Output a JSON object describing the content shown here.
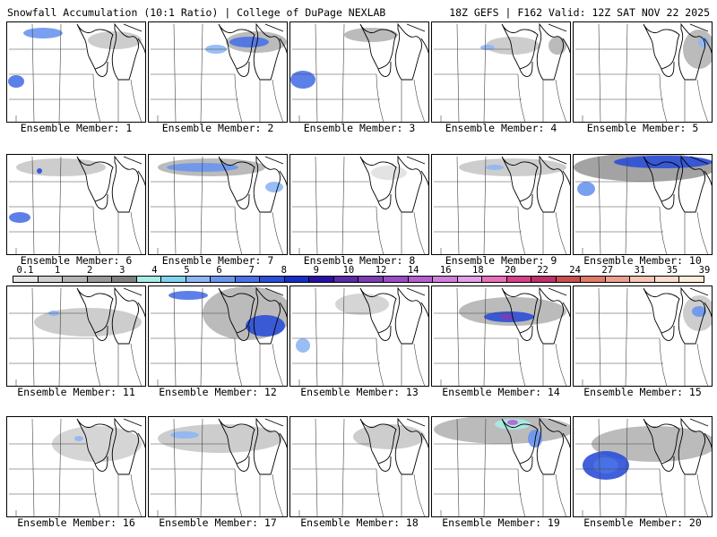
{
  "header": {
    "title_left": "Snowfall Accumulation (10:1 Ratio) | College of DuPage NEXLAB",
    "title_right": "18Z GEFS | F162 Valid: 12Z SAT NOV 22 2025"
  },
  "colorbar": {
    "labels": [
      "0.1",
      "1",
      "2",
      "3",
      "4",
      "5",
      "6",
      "7",
      "8",
      "9",
      "10",
      "12",
      "14",
      "16",
      "18",
      "20",
      "22",
      "24",
      "27",
      "31",
      "35",
      "39"
    ],
    "colors": [
      "#e6e6e6",
      "#cfcfcf",
      "#b4b4b4",
      "#999999",
      "#7f7f7f",
      "#a8ece8",
      "#7fd4ee",
      "#8fb6f4",
      "#6a96ee",
      "#4a72e6",
      "#2b4fd8",
      "#1530c8",
      "#2a10a8",
      "#5a2aa8",
      "#7e3cb4",
      "#9a4ec4",
      "#b460d0",
      "#d080dc",
      "#e0a0e6",
      "#e870b8",
      "#d8408a",
      "#c0306a",
      "#c85050",
      "#e07a6a",
      "#eca090",
      "#f4c4b4",
      "#fadcd0",
      "#fcecd8"
    ]
  },
  "panels": [
    {
      "label": "Ensemble Member: 1",
      "snow": [
        {
          "x": 40,
          "y": 12,
          "rx": 22,
          "ry": 6,
          "c": "#6a96ee"
        },
        {
          "x": 120,
          "y": 20,
          "rx": 30,
          "ry": 10,
          "c": "#c8c8c8"
        },
        {
          "x": 10,
          "y": 66,
          "rx": 9,
          "ry": 7,
          "c": "#4a72e6"
        }
      ]
    },
    {
      "label": "Ensemble Member: 2",
      "snow": [
        {
          "x": 120,
          "y": 22,
          "rx": 34,
          "ry": 12,
          "c": "#b4b4b4"
        },
        {
          "x": 112,
          "y": 22,
          "rx": 22,
          "ry": 6,
          "c": "#4a72e6"
        },
        {
          "x": 75,
          "y": 30,
          "rx": 12,
          "ry": 5,
          "c": "#8fb6f4"
        }
      ]
    },
    {
      "label": "Ensemble Member: 3",
      "snow": [
        {
          "x": 14,
          "y": 64,
          "rx": 14,
          "ry": 10,
          "c": "#4a72e6"
        },
        {
          "x": 90,
          "y": 14,
          "rx": 30,
          "ry": 8,
          "c": "#b4b4b4"
        }
      ]
    },
    {
      "label": "Ensemble Member: 4",
      "snow": [
        {
          "x": 90,
          "y": 26,
          "rx": 30,
          "ry": 10,
          "c": "#c8c8c8"
        },
        {
          "x": 62,
          "y": 28,
          "rx": 8,
          "ry": 3,
          "c": "#8fb6f4"
        },
        {
          "x": 140,
          "y": 26,
          "rx": 10,
          "ry": 10,
          "c": "#b4b4b4"
        }
      ]
    },
    {
      "label": "Ensemble Member: 5",
      "snow": [
        {
          "x": 140,
          "y": 30,
          "rx": 18,
          "ry": 22,
          "c": "#b4b4b4"
        },
        {
          "x": 145,
          "y": 22,
          "rx": 6,
          "ry": 6,
          "c": "#8fb6f4"
        }
      ]
    },
    {
      "label": "Ensemble Member: 6",
      "snow": [
        {
          "x": 60,
          "y": 14,
          "rx": 50,
          "ry": 10,
          "c": "#c8c8c8"
        },
        {
          "x": 14,
          "y": 70,
          "rx": 12,
          "ry": 6,
          "c": "#4a72e6"
        },
        {
          "x": 36,
          "y": 18,
          "rx": 3,
          "ry": 3,
          "c": "#2b4fd8"
        }
      ]
    },
    {
      "label": "Ensemble Member: 7",
      "snow": [
        {
          "x": 70,
          "y": 14,
          "rx": 60,
          "ry": 10,
          "c": "#b4b4b4"
        },
        {
          "x": 60,
          "y": 14,
          "rx": 40,
          "ry": 5,
          "c": "#6a96ee"
        },
        {
          "x": 140,
          "y": 36,
          "rx": 10,
          "ry": 6,
          "c": "#8fb6f4"
        }
      ]
    },
    {
      "label": "Ensemble Member: 8",
      "snow": [
        {
          "x": 110,
          "y": 20,
          "rx": 20,
          "ry": 8,
          "c": "#e0e0e0"
        }
      ]
    },
    {
      "label": "Ensemble Member: 9",
      "snow": [
        {
          "x": 90,
          "y": 14,
          "rx": 60,
          "ry": 10,
          "c": "#c8c8c8"
        },
        {
          "x": 70,
          "y": 14,
          "rx": 10,
          "ry": 3,
          "c": "#8fb6f4"
        }
      ]
    },
    {
      "label": "Ensemble Member: 10",
      "snow": [
        {
          "x": 80,
          "y": 14,
          "rx": 80,
          "ry": 16,
          "c": "#999999"
        },
        {
          "x": 100,
          "y": 8,
          "rx": 55,
          "ry": 7,
          "c": "#2b4fd8"
        },
        {
          "x": 14,
          "y": 38,
          "rx": 10,
          "ry": 8,
          "c": "#6a96ee"
        }
      ]
    },
    {
      "label": "Ensemble Member: 11",
      "snow": [
        {
          "x": 90,
          "y": 40,
          "rx": 60,
          "ry": 16,
          "c": "#c8c8c8"
        },
        {
          "x": 52,
          "y": 30,
          "rx": 6,
          "ry": 3,
          "c": "#8fb6f4"
        }
      ]
    },
    {
      "label": "Ensemble Member: 12",
      "snow": [
        {
          "x": 110,
          "y": 30,
          "rx": 50,
          "ry": 30,
          "c": "#b4b4b4"
        },
        {
          "x": 130,
          "y": 44,
          "rx": 22,
          "ry": 12,
          "c": "#2b4fd8"
        },
        {
          "x": 44,
          "y": 10,
          "rx": 22,
          "ry": 5,
          "c": "#4a72e6"
        }
      ]
    },
    {
      "label": "Ensemble Member: 13",
      "snow": [
        {
          "x": 14,
          "y": 66,
          "rx": 8,
          "ry": 8,
          "c": "#8fb6f4"
        },
        {
          "x": 80,
          "y": 20,
          "rx": 30,
          "ry": 12,
          "c": "#d0d0d0"
        }
      ]
    },
    {
      "label": "Ensemble Member: 14",
      "snow": [
        {
          "x": 90,
          "y": 28,
          "rx": 60,
          "ry": 16,
          "c": "#b4b4b4"
        },
        {
          "x": 86,
          "y": 34,
          "rx": 28,
          "ry": 6,
          "c": "#2b4fd8"
        },
        {
          "x": 84,
          "y": 34,
          "rx": 8,
          "ry": 3,
          "c": "#7e3cb4"
        }
      ]
    },
    {
      "label": "Ensemble Member: 15",
      "snow": [
        {
          "x": 140,
          "y": 30,
          "rx": 18,
          "ry": 20,
          "c": "#c8c8c8"
        },
        {
          "x": 140,
          "y": 28,
          "rx": 8,
          "ry": 6,
          "c": "#6a96ee"
        }
      ]
    },
    {
      "label": "Ensemble Member: 16",
      "snow": [
        {
          "x": 100,
          "y": 30,
          "rx": 50,
          "ry": 20,
          "c": "#d0d0d0"
        },
        {
          "x": 80,
          "y": 24,
          "rx": 5,
          "ry": 3,
          "c": "#8fb6f4"
        }
      ]
    },
    {
      "label": "Ensemble Member: 17",
      "snow": [
        {
          "x": 80,
          "y": 24,
          "rx": 70,
          "ry": 16,
          "c": "#c8c8c8"
        },
        {
          "x": 40,
          "y": 20,
          "rx": 16,
          "ry": 4,
          "c": "#8fb6f4"
        }
      ]
    },
    {
      "label": "Ensemble Member: 18",
      "snow": [
        {
          "x": 110,
          "y": 22,
          "rx": 40,
          "ry": 14,
          "c": "#c8c8c8"
        }
      ]
    },
    {
      "label": "Ensemble Member: 19",
      "snow": [
        {
          "x": 80,
          "y": 14,
          "rx": 78,
          "ry": 16,
          "c": "#b4b4b4"
        },
        {
          "x": 90,
          "y": 8,
          "rx": 20,
          "ry": 6,
          "c": "#a8ece8"
        },
        {
          "x": 90,
          "y": 6,
          "rx": 6,
          "ry": 3,
          "c": "#b460d0"
        },
        {
          "x": 115,
          "y": 24,
          "rx": 8,
          "ry": 10,
          "c": "#6a96ee"
        }
      ]
    },
    {
      "label": "Ensemble Member: 20",
      "snow": [
        {
          "x": 90,
          "y": 30,
          "rx": 70,
          "ry": 20,
          "c": "#b4b4b4"
        },
        {
          "x": 36,
          "y": 54,
          "rx": 26,
          "ry": 16,
          "c": "#2b4fd8"
        },
        {
          "x": 36,
          "y": 54,
          "rx": 14,
          "ry": 9,
          "c": "#4a72e6"
        }
      ]
    }
  ]
}
